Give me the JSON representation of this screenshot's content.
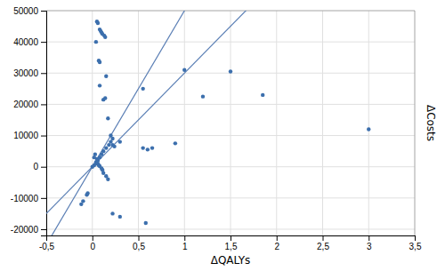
{
  "chart_data": {
    "type": "scatter",
    "xlabel": "ΔQALYs",
    "ylabel": "ΔCosts",
    "series": [
      {
        "x": [
          0.05,
          0.06,
          0.08,
          0.09,
          0.1,
          0.11,
          0.13,
          0.14,
          0.07,
          0.08,
          0.15,
          0.04,
          0.08,
          0.12,
          0.14,
          0.17,
          0.2,
          0.22,
          0.24,
          0.55,
          0.6,
          0.65,
          0.9,
          1.0,
          1.2,
          1.5,
          1.85,
          3.0,
          0.02,
          0.03,
          0.04,
          0.05,
          0.06,
          0.07,
          0.08,
          0.1,
          0.11,
          0.12,
          0.15,
          0.17,
          -0.05,
          -0.06,
          -0.1,
          -0.12,
          0.22,
          0.3,
          0.58
        ],
        "values": [
          46500,
          46000,
          44000,
          43500,
          43000,
          42500,
          42000,
          41500,
          34000,
          33500,
          29000,
          40000,
          26000,
          21500,
          22000,
          15500,
          10000,
          7000,
          6500,
          25000,
          5500,
          6000,
          7500,
          31000,
          22500,
          30500,
          23000,
          12000,
          3000,
          4000,
          1500,
          2500,
          1000,
          500,
          200,
          -500,
          -1000,
          -2000,
          -3000,
          -4000,
          -8500,
          -9000,
          -11000,
          -12000,
          -15000,
          -16000,
          -18000
        ],
        "color": "#3c6fad",
        "marker": "circle"
      },
      {
        "x": [
          0.0,
          0.02,
          0.04,
          0.06,
          0.08,
          0.1,
          0.12,
          0.15,
          0.18,
          0.2,
          0.22,
          0.3,
          0.55
        ],
        "values": [
          0,
          500,
          1000,
          2000,
          3000,
          4000,
          5000,
          6000,
          7000,
          8000,
          9000,
          8000,
          6000
        ],
        "color": "#3c6fad",
        "marker": "circle"
      }
    ],
    "reference_lines": [
      {
        "slope": 30000,
        "color": "#5b7fb5"
      },
      {
        "slope": 50000,
        "color": "#5b7fb5"
      }
    ],
    "xlim": [
      -0.5,
      3.5
    ],
    "ylim": [
      -22000,
      50000
    ],
    "xticks": [
      {
        "value": -0.5,
        "label": "-0,5"
      },
      0,
      {
        "value": 0.5,
        "label": "0,5"
      },
      1,
      {
        "value": 1.5,
        "label": "1,5"
      },
      2,
      {
        "value": 2.5,
        "label": "2,5"
      },
      3,
      {
        "value": 3.5,
        "label": "3,5"
      }
    ],
    "yticks": [
      -20000,
      -10000,
      0,
      10000,
      20000,
      30000,
      40000,
      50000
    ],
    "grid": true
  }
}
